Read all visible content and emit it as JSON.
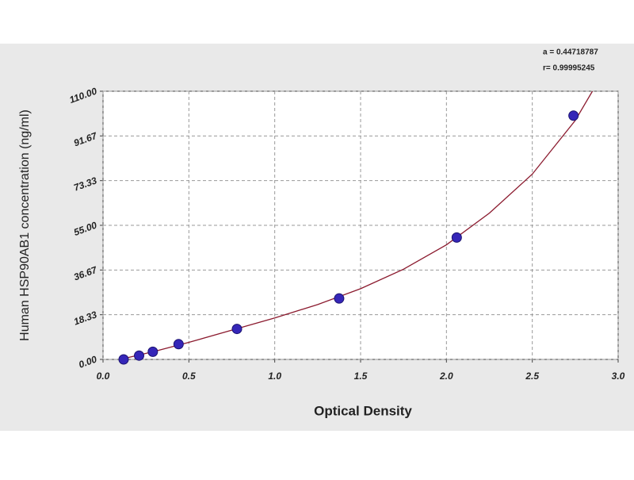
{
  "chart_data": {
    "type": "scatter",
    "x_label": "Optical Density",
    "y_label": "Human HSP90AB1 concentration (ng/ml)",
    "annotations": [
      "a = 0.44718787",
      "r= 0.99995245"
    ],
    "xlim": [
      0,
      3
    ],
    "ylim": [
      0,
      110
    ],
    "xticks": [
      {
        "value": 0,
        "label": "0.0"
      },
      {
        "value": 0.5,
        "label": "0.5"
      },
      {
        "value": 1,
        "label": "1.0"
      },
      {
        "value": 1.5,
        "label": "1.5"
      },
      {
        "value": 2,
        "label": "2.0"
      },
      {
        "value": 2.5,
        "label": "2.5"
      },
      {
        "value": 3,
        "label": "3.0"
      }
    ],
    "yticks": [
      {
        "value": 0,
        "label": "0.00"
      },
      {
        "value": 18.33,
        "label": "18.33"
      },
      {
        "value": 36.67,
        "label": "36.67"
      },
      {
        "value": 55,
        "label": "55.00"
      },
      {
        "value": 73.33,
        "label": "73.33"
      },
      {
        "value": 91.67,
        "label": "91.67"
      },
      {
        "value": 110,
        "label": "110.00"
      }
    ],
    "grid": true,
    "series": [
      {
        "kind": "points",
        "color": "#3526b8",
        "x": [
          0.12,
          0.21,
          0.29,
          0.44,
          0.78,
          1.375,
          2.06,
          2.74
        ],
        "values": [
          0,
          1.56,
          3.125,
          6.25,
          12.5,
          25,
          50,
          100
        ]
      },
      {
        "kind": "curve",
        "color": "#8b1a2e",
        "x": [
          0.1,
          0.3,
          0.5,
          0.75,
          1.0,
          1.25,
          1.5,
          1.75,
          2.0,
          2.25,
          2.5,
          2.75,
          2.85
        ],
        "values": [
          0,
          3.3,
          7,
          12,
          17,
          22.5,
          29,
          37,
          47,
          60,
          76,
          98,
          110
        ]
      }
    ]
  }
}
